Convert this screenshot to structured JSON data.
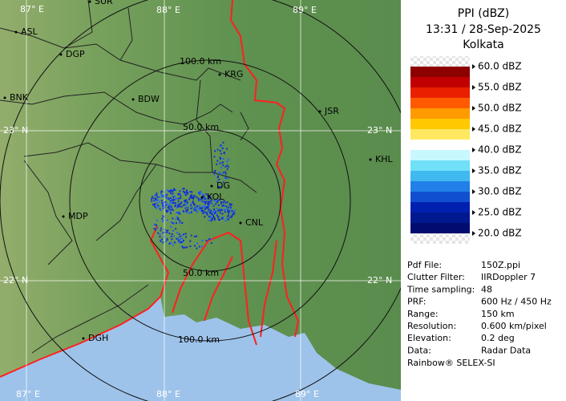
{
  "panel": {
    "title": "PPI (dBZ)",
    "time": "13:31 / 28-Sep-2025",
    "site": "Kolkata",
    "scale": [
      "60.0 dBZ",
      "55.0 dBZ",
      "50.0 dBZ",
      "45.0 dBZ",
      "40.0 dBZ",
      "35.0 dBZ",
      "30.0 dBZ",
      "25.0 dBZ",
      "20.0 dBZ"
    ],
    "info": [
      [
        "Pdf File:",
        "150Z.ppi"
      ],
      [
        "Clutter Filter:",
        "IIRDoppler 7"
      ],
      [
        "Time sampling:",
        "48"
      ],
      [
        "PRF:",
        "600 Hz / 450 Hz"
      ],
      [
        "Range:",
        "150 km"
      ],
      [
        "Resolution:",
        "0.600 km/pixel"
      ],
      [
        "Elevation:",
        "0.2 deg"
      ],
      [
        "Data:",
        "Radar Data"
      ]
    ],
    "footer": "Rainbow® SELEX-SI"
  },
  "map": {
    "cities": [
      "SUR",
      "ASL",
      "DGP",
      "BNK",
      "BDW",
      "KRG",
      "JSR",
      "KHL",
      "MDP",
      "DG",
      "KOL",
      "CNL",
      "DGH"
    ],
    "grid_labels": [
      "87° E",
      "88° E",
      "89° E",
      "23° N",
      "23° N",
      "22° N",
      "22° N",
      "87° E",
      "88° E",
      "89° E"
    ],
    "range_labels": [
      "100.0 km",
      "50.0 km",
      "50.0 km",
      "100.0 km"
    ]
  }
}
